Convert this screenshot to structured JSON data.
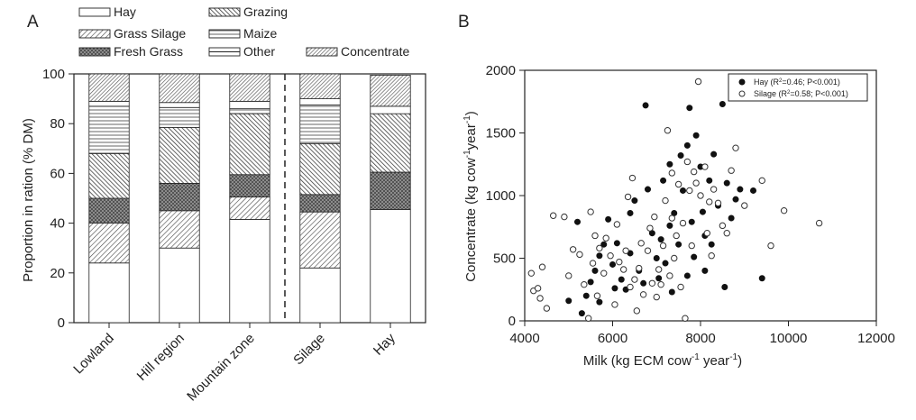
{
  "chart_data": [
    {
      "panel_label": "A",
      "type": "bar",
      "stacked": true,
      "ylabel": "Proportion in ration (% DM)",
      "xlabel": "",
      "ylim": [
        0,
        100
      ],
      "yticks": [
        0,
        20,
        40,
        60,
        80,
        100
      ],
      "categories": [
        "Lowland",
        "Hill region",
        "Mountain zone",
        "Silage",
        "Hay"
      ],
      "separator_after_category": "Mountain zone",
      "legend_position": "top",
      "series": [
        {
          "name": "Hay",
          "pattern": "white",
          "values": [
            24,
            30,
            41.5,
            22,
            45.5
          ]
        },
        {
          "name": "Grass Silage",
          "pattern": "diag-fine",
          "values": [
            16,
            15,
            9,
            22.5,
            0
          ]
        },
        {
          "name": "Fresh Grass",
          "pattern": "crosshatch",
          "values": [
            10,
            11,
            9,
            7,
            15
          ]
        },
        {
          "name": "Grazing",
          "pattern": "diag-back",
          "values": [
            18,
            22.5,
            24.5,
            20.5,
            23.5
          ]
        },
        {
          "name": "Maize",
          "pattern": "horizontal",
          "values": [
            19,
            8,
            2,
            15.5,
            0
          ]
        },
        {
          "name": "Other",
          "pattern": "white-line",
          "values": [
            2,
            2,
            3,
            2.5,
            3
          ]
        },
        {
          "name": "Concentrate",
          "pattern": "diag-coarse",
          "values": [
            11,
            11.5,
            11,
            10,
            12.5
          ]
        }
      ]
    },
    {
      "panel_label": "B",
      "type": "scatter",
      "xlabel": "Milk (kg ECM cow",
      "xlabel_sup": "-1",
      "xlabel_mid": " year",
      "xlabel_sup2": "-1",
      "xlabel_end": ")",
      "ylabel": "Concentrate (kg cow",
      "ylabel_sup": "-1",
      "ylabel_mid": "year",
      "ylabel_sup2": "-1",
      "ylabel_end": ")",
      "xlim": [
        4000,
        12000
      ],
      "ylim": [
        0,
        2000
      ],
      "xticks": [
        4000,
        6000,
        8000,
        10000,
        12000
      ],
      "yticks": [
        0,
        500,
        1000,
        1500,
        2000
      ],
      "legend_position": "top-right",
      "series": [
        {
          "name": "Hay (R²=0.46; P<0.001)",
          "legend_prefix": "Hay (R",
          "legend_sup": "2",
          "legend_suffix": "=0.46; P<0.001)",
          "marker": "filled",
          "points": [
            [
              5000,
              160
            ],
            [
              5200,
              790
            ],
            [
              5300,
              60
            ],
            [
              5400,
              200
            ],
            [
              5500,
              310
            ],
            [
              5600,
              400
            ],
            [
              5700,
              520
            ],
            [
              5800,
              610
            ],
            [
              5900,
              810
            ],
            [
              6000,
              450
            ],
            [
              6050,
              260
            ],
            [
              6100,
              620
            ],
            [
              6200,
              330
            ],
            [
              6300,
              250
            ],
            [
              6400,
              540
            ],
            [
              6500,
              960
            ],
            [
              6600,
              400
            ],
            [
              6700,
              300
            ],
            [
              6750,
              1720
            ],
            [
              6800,
              1050
            ],
            [
              6900,
              700
            ],
            [
              7000,
              500
            ],
            [
              7050,
              340
            ],
            [
              7100,
              650
            ],
            [
              7150,
              1120
            ],
            [
              7200,
              460
            ],
            [
              7300,
              1250
            ],
            [
              7350,
              230
            ],
            [
              7400,
              860
            ],
            [
              7500,
              610
            ],
            [
              7550,
              1320
            ],
            [
              7600,
              1040
            ],
            [
              7700,
              1400
            ],
            [
              7750,
              1700
            ],
            [
              7800,
              790
            ],
            [
              7850,
              510
            ],
            [
              7900,
              1480
            ],
            [
              8000,
              1230
            ],
            [
              8050,
              870
            ],
            [
              8100,
              680
            ],
            [
              8200,
              1120
            ],
            [
              8250,
              610
            ],
            [
              8300,
              1330
            ],
            [
              8400,
              920
            ],
            [
              8500,
              1730
            ],
            [
              8550,
              270
            ],
            [
              8600,
              1100
            ],
            [
              8700,
              820
            ],
            [
              8800,
              970
            ],
            [
              8900,
              1050
            ],
            [
              9200,
              1040
            ],
            [
              9400,
              340
            ],
            [
              8100,
              400
            ],
            [
              7700,
              360
            ],
            [
              6400,
              860
            ],
            [
              5700,
              150
            ],
            [
              7300,
              760
            ]
          ]
        },
        {
          "name": "Silage (R²=0.58; P<0.001)",
          "legend_prefix": "Silage (R",
          "legend_sup": "2",
          "legend_suffix": "=0.58; P<0.001)",
          "marker": "open",
          "points": [
            [
              4150,
              380
            ],
            [
              4200,
              240
            ],
            [
              4300,
              260
            ],
            [
              4350,
              180
            ],
            [
              4400,
              430
            ],
            [
              4500,
              100
            ],
            [
              4650,
              840
            ],
            [
              4900,
              830
            ],
            [
              5000,
              360
            ],
            [
              5100,
              570
            ],
            [
              5250,
              530
            ],
            [
              5350,
              290
            ],
            [
              5450,
              20
            ],
            [
              5500,
              870
            ],
            [
              5550,
              460
            ],
            [
              5650,
              200
            ],
            [
              5700,
              580
            ],
            [
              5800,
              380
            ],
            [
              5850,
              660
            ],
            [
              5950,
              520
            ],
            [
              6050,
              130
            ],
            [
              6150,
              470
            ],
            [
              6250,
              410
            ],
            [
              6300,
              560
            ],
            [
              6350,
              990
            ],
            [
              6400,
              270
            ],
            [
              6450,
              1140
            ],
            [
              6500,
              330
            ],
            [
              6550,
              80
            ],
            [
              6600,
              420
            ],
            [
              6650,
              620
            ],
            [
              6700,
              210
            ],
            [
              6800,
              560
            ],
            [
              6850,
              740
            ],
            [
              6950,
              830
            ],
            [
              7000,
              190
            ],
            [
              7050,
              410
            ],
            [
              7100,
              290
            ],
            [
              7150,
              600
            ],
            [
              7200,
              960
            ],
            [
              7250,
              1520
            ],
            [
              7300,
              360
            ],
            [
              7350,
              1180
            ],
            [
              7400,
              500
            ],
            [
              7450,
              680
            ],
            [
              7500,
              1090
            ],
            [
              7550,
              270
            ],
            [
              7600,
              780
            ],
            [
              7650,
              20
            ],
            [
              7700,
              1270
            ],
            [
              7750,
              1040
            ],
            [
              7800,
              600
            ],
            [
              7850,
              1190
            ],
            [
              7900,
              1100
            ],
            [
              7950,
              1910
            ],
            [
              8000,
              1000
            ],
            [
              8100,
              1230
            ],
            [
              8150,
              700
            ],
            [
              8200,
              950
            ],
            [
              8250,
              520
            ],
            [
              8300,
              1050
            ],
            [
              8400,
              940
            ],
            [
              8500,
              760
            ],
            [
              8600,
              700
            ],
            [
              8700,
              1200
            ],
            [
              8800,
              1380
            ],
            [
              9000,
              920
            ],
            [
              9400,
              1120
            ],
            [
              9600,
              600
            ],
            [
              9900,
              880
            ],
            [
              10700,
              780
            ],
            [
              6900,
              300
            ],
            [
              7350,
              820
            ],
            [
              6100,
              770
            ],
            [
              5600,
              680
            ]
          ]
        }
      ]
    }
  ]
}
